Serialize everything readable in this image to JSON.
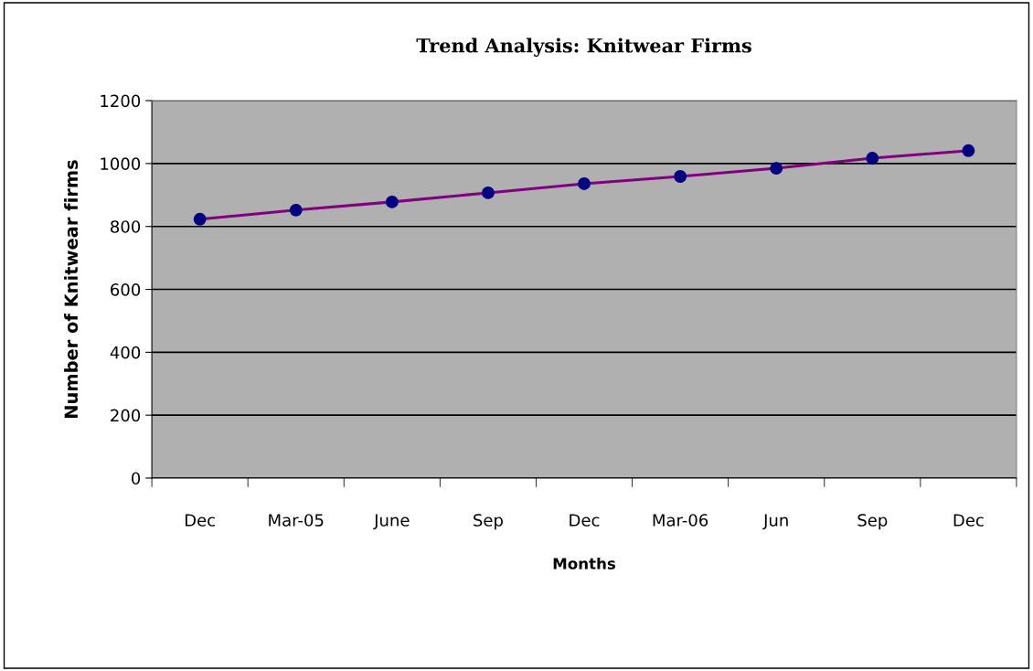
{
  "chart_data": {
    "type": "line",
    "title": "Trend Analysis: Knitwear Firms",
    "xlabel": "Months",
    "ylabel": "Number of Knitwear firms",
    "categories": [
      "Dec",
      "Mar-05",
      "June",
      "Sep",
      "Dec",
      "Mar-06",
      "Jun",
      "Sep",
      "Dec"
    ],
    "series": [
      {
        "color": "#800080",
        "colors": [
          "#000080",
          "#000080",
          "#000080",
          "#000080",
          "#000080",
          "#000080",
          "#000080",
          "#000080",
          "#000080"
        ],
        "values": [
          823,
          852,
          878,
          907,
          936,
          959,
          985,
          1017,
          1041
        ]
      }
    ],
    "ylim": [
      0,
      1200
    ],
    "yticks": [
      0,
      200,
      400,
      600,
      800,
      1000,
      1200
    ],
    "grid": "y",
    "marker": "circle",
    "line_style": "solid",
    "legend": false
  }
}
